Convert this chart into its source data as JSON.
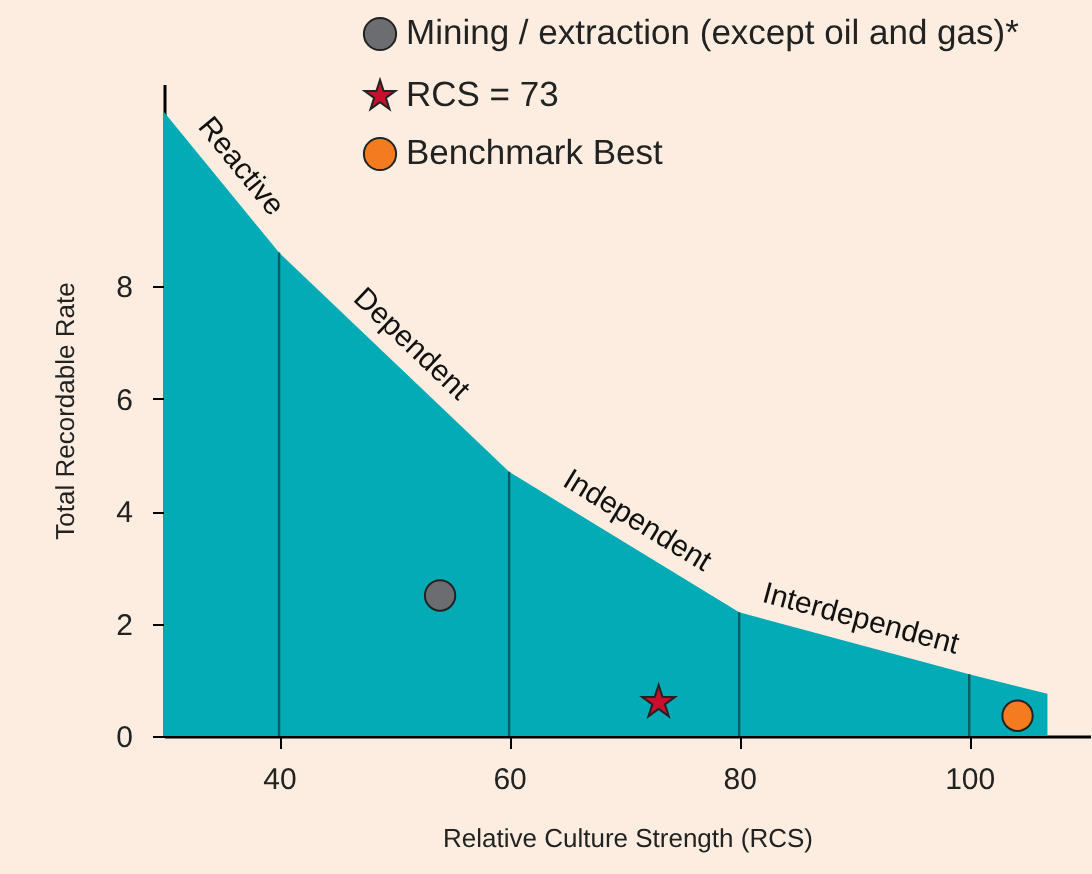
{
  "chart_data": {
    "type": "area",
    "xlabel": "Relative Culture Strength (RCS)",
    "ylabel": "Total Recordable Rate",
    "xlim": [
      30,
      110.5
    ],
    "ylim": [
      0,
      11.6
    ],
    "xticks": [
      40,
      60,
      80,
      100
    ],
    "yticks": [
      0,
      2,
      4,
      6,
      8
    ],
    "grid": false,
    "legend": "top right",
    "series": [
      {
        "color": "#02abb5",
        "x": [
          30,
          40,
          60,
          80,
          100,
          106.8
        ],
        "values": [
          11.1,
          8.6,
          4.7,
          2.2,
          1.1,
          0.75
        ]
      },
      {
        "type": "scatter",
        "name": "Mining / extraction (except oil and gas)*",
        "color": "#6c6d70",
        "marker": "circle",
        "x": [
          54
        ],
        "values": [
          2.5
        ]
      },
      {
        "type": "scatter",
        "name": "RCS = 73",
        "color": "#c8102e",
        "marker": "star",
        "x": [
          73
        ],
        "values": [
          0.6
        ]
      },
      {
        "type": "scatter",
        "name": "Benchmark Best",
        "color": "#f47b20",
        "marker": "circle",
        "x": [
          104.2
        ],
        "values": [
          0.36
        ]
      }
    ],
    "ref_lines": [
      {
        "axis": "x",
        "value": 40,
        "color": "#0b5d63"
      },
      {
        "axis": "x",
        "value": 60,
        "color": "#0b5d63"
      },
      {
        "axis": "x",
        "value": 80,
        "color": "#0b5d63"
      },
      {
        "axis": "x",
        "value": 100,
        "color": "#0b5d63"
      }
    ],
    "annotations": [
      "Reactive",
      "Dependent",
      "Independent",
      "Interdependent"
    ]
  }
}
